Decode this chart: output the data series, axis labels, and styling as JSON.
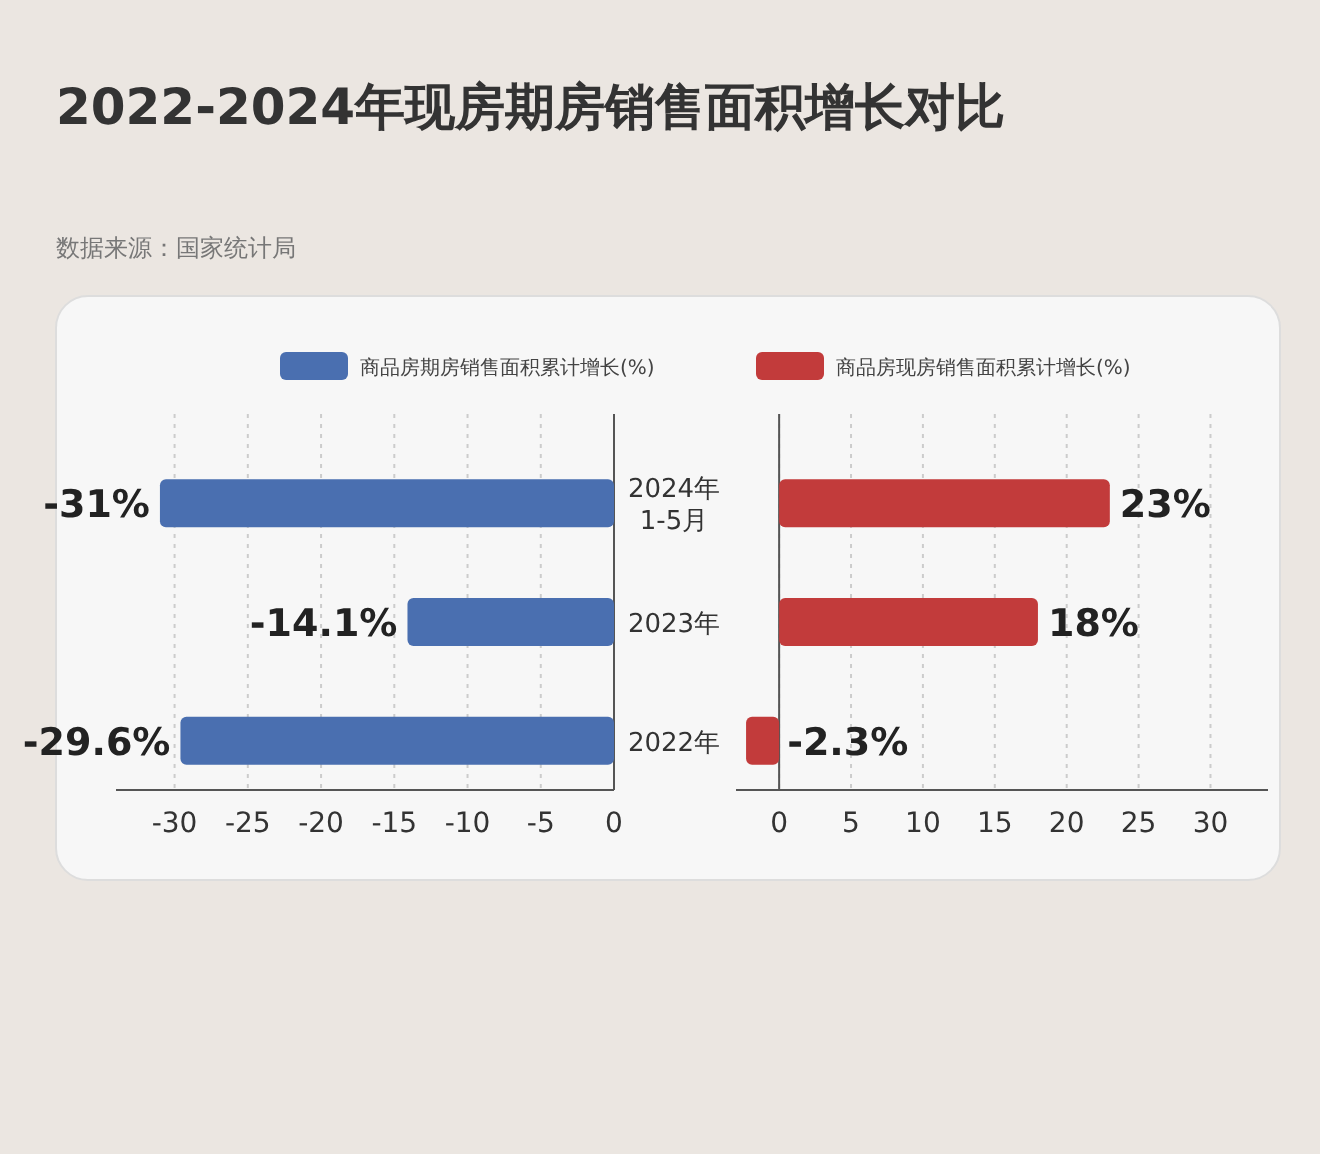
{
  "chart_data": [
    {
      "type": "bar",
      "orientation": "horizontal",
      "title": "2022-2024年现房期房销售面积增长对比",
      "annotations": [
        "数据来源：国家统计局"
      ],
      "categories": [
        "2024年 1-5月",
        "2023年",
        "2022年"
      ],
      "series": [
        {
          "name": "商品房期房销售面积累计增长(%)",
          "color": "#4a6fb0",
          "values": [
            -31,
            -14.1,
            -29.6
          ],
          "value_labels": [
            "-31%",
            "-14.1%",
            "-29.6%"
          ]
        }
      ],
      "xlim": [
        -34,
        0
      ],
      "xticks": [
        -30,
        -25,
        -20,
        -15,
        -10,
        -5,
        0
      ],
      "grid": "x",
      "legend": "top"
    },
    {
      "type": "bar",
      "orientation": "horizontal",
      "tick_labels": "x",
      "series": [
        {
          "name": "商品房现房销售面积累计增长(%)",
          "color": "#c23b3b",
          "values": [
            23,
            18,
            -2.3
          ],
          "value_labels": [
            "23%",
            "18%",
            "-2.3%"
          ]
        }
      ],
      "xlim": [
        -3,
        34
      ],
      "xticks": [
        0,
        5,
        10,
        15,
        20,
        25,
        30
      ],
      "grid": "x",
      "legend": "top"
    }
  ]
}
